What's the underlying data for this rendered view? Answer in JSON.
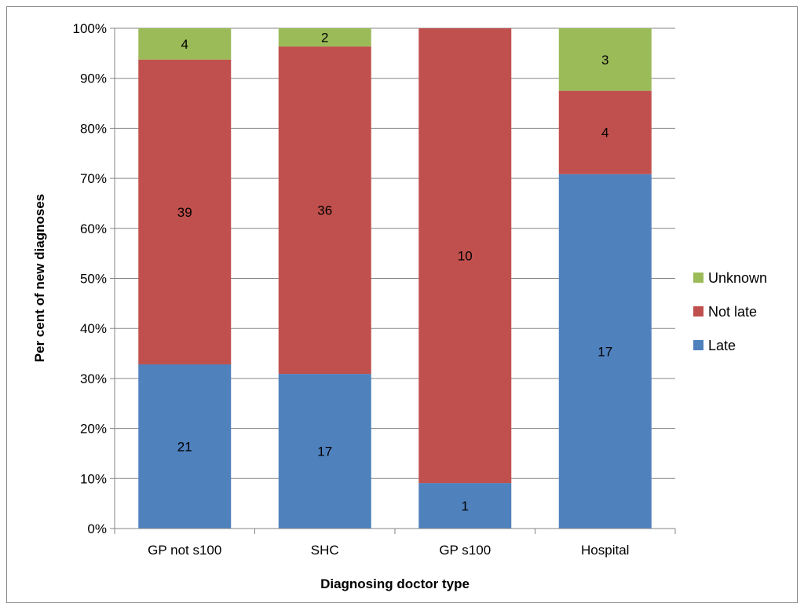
{
  "chart_data": {
    "type": "bar",
    "stacked": true,
    "percent_stacked": true,
    "categories": [
      "GP not s100",
      "SHC",
      "GP s100",
      "Hospital"
    ],
    "series": [
      {
        "name": "Late",
        "values": [
          21,
          17,
          1,
          17
        ],
        "color": "#4F81BD"
      },
      {
        "name": "Not late",
        "values": [
          39,
          36,
          10,
          4
        ],
        "color": "#C0504D"
      },
      {
        "name": "Unknown",
        "values": [
          4,
          2,
          0,
          3
        ],
        "color": "#9BBB59"
      }
    ],
    "xlabel": "Diagnosing doctor type",
    "ylabel": "Per cent of new diagnoses",
    "yticks": [
      "0%",
      "10%",
      "20%",
      "30%",
      "40%",
      "50%",
      "60%",
      "70%",
      "80%",
      "90%",
      "100%"
    ],
    "ylim": [
      0,
      100
    ],
    "grid": true,
    "legend": {
      "position": "right",
      "order": [
        "Unknown",
        "Not late",
        "Late"
      ]
    }
  }
}
